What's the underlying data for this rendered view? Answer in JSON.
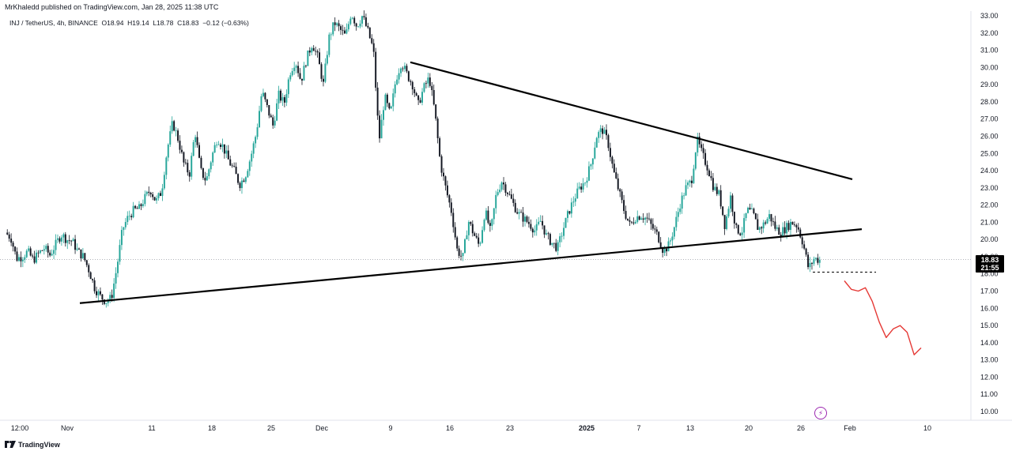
{
  "publisher_line": "MrKhaledd published on TradingView.com, Jan 28, 2025 11:38 UTC",
  "symbol_info": {
    "symbol": "INJ / TetherUS, 4h, BINANCE",
    "open": "O18.94",
    "high": "H19.14",
    "low": "L18.78",
    "close": "C18.83",
    "change": "−0.12 (−0.63%)"
  },
  "price_badge": {
    "price": "18.83",
    "countdown": "21:55"
  },
  "footer": {
    "brand": "TradingView"
  },
  "icons": {
    "events": "lightning-icon",
    "logo": "tradingview-logo-icon"
  },
  "colors": {
    "up": "#26a69a",
    "down": "#131722",
    "projection": "#e53935",
    "trendline": "#000000",
    "events": "#9c27b0"
  },
  "chart_data": {
    "type": "candlestick",
    "y_axis": {
      "position": "right",
      "ylim": [
        9.5,
        33.0
      ],
      "ticks": [
        "33.00",
        "32.00",
        "31.00",
        "30.00",
        "29.00",
        "28.00",
        "27.00",
        "26.00",
        "25.00",
        "24.00",
        "23.00",
        "22.00",
        "21.00",
        "20.00",
        "19.00",
        "18.00",
        "17.00",
        "16.00",
        "15.00",
        "14.00",
        "13.00",
        "12.00",
        "11.00",
        "10.00"
      ]
    },
    "x_axis": {
      "ticks": [
        {
          "label": "12:00",
          "bold": false
        },
        {
          "label": "Nov",
          "bold": false
        },
        {
          "label": "11",
          "bold": false
        },
        {
          "label": "18",
          "bold": false
        },
        {
          "label": "25",
          "bold": false
        },
        {
          "label": "Dec",
          "bold": false
        },
        {
          "label": "9",
          "bold": false
        },
        {
          "label": "16",
          "bold": false
        },
        {
          "label": "23",
          "bold": false
        },
        {
          "label": "2025",
          "bold": true
        },
        {
          "label": "7",
          "bold": false
        },
        {
          "label": "13",
          "bold": false
        },
        {
          "label": "20",
          "bold": false
        },
        {
          "label": "26",
          "bold": false
        },
        {
          "label": "Feb",
          "bold": false
        },
        {
          "label": "10",
          "bold": false
        }
      ]
    },
    "last_price": 18.83,
    "price_path": [
      20.4,
      20.1,
      18.9,
      19.0,
      19.3,
      18.8,
      19.2,
      19.5,
      19.1,
      19.7,
      20.3,
      20.0,
      19.9,
      19.3,
      19.0,
      18.2,
      17.2,
      16.7,
      16.4,
      16.6,
      18.4,
      20.6,
      21.3,
      21.7,
      21.8,
      22.4,
      22.9,
      22.2,
      22.8,
      25.2,
      26.8,
      25.8,
      24.4,
      23.8,
      26.3,
      24.0,
      23.4,
      24.8,
      25.9,
      25.4,
      24.6,
      24.0,
      23.2,
      23.7,
      24.8,
      26.2,
      28.6,
      27.6,
      26.6,
      28.4,
      27.9,
      29.7,
      30.4,
      29.2,
      30.5,
      31.4,
      30.6,
      29.0,
      31.7,
      32.6,
      32.2,
      31.8,
      33.2,
      32.4,
      33.0,
      32.1,
      31.0,
      25.7,
      28.3,
      27.2,
      29.3,
      30.3,
      29.6,
      29.0,
      27.8,
      28.8,
      29.4,
      27.4,
      24.4,
      22.9,
      21.6,
      19.4,
      18.9,
      21.1,
      20.3,
      19.6,
      21.7,
      20.4,
      22.6,
      23.4,
      22.8,
      22.1,
      21.5,
      21.2,
      20.9,
      20.5,
      21.1,
      20.2,
      19.8,
      19.5,
      20.6,
      21.6,
      22.4,
      23.0,
      23.4,
      24.4,
      26.0,
      26.4,
      25.7,
      24.0,
      22.8,
      21.6,
      20.8,
      21.3,
      21.4,
      21.2,
      20.7,
      20.2,
      19.3,
      19.7,
      20.8,
      22.1,
      23.0,
      23.4,
      25.8,
      24.9,
      24.1,
      23.0,
      22.6,
      20.8,
      22.5,
      20.6,
      20.4,
      21.7,
      21.5,
      20.6,
      20.9,
      21.4,
      20.7,
      20.4,
      20.7,
      21.0,
      20.8,
      19.8,
      18.3,
      18.9,
      18.8
    ],
    "trendlines": [
      {
        "name": "upper-resistance",
        "from": {
          "x": "Dec 10",
          "y": 30.3
        },
        "to": {
          "x": "Feb 1",
          "y": 23.5
        }
      },
      {
        "name": "lower-support",
        "from": {
          "x": "Nov 3",
          "y": 16.3
        },
        "to": {
          "x": "Feb 2",
          "y": 20.6
        }
      }
    ],
    "support_level": 18.1,
    "projection_path": [
      17.6,
      17.1,
      17.0,
      17.2,
      16.4,
      15.2,
      14.3,
      14.8,
      15.0,
      14.6,
      13.3,
      13.7
    ]
  }
}
